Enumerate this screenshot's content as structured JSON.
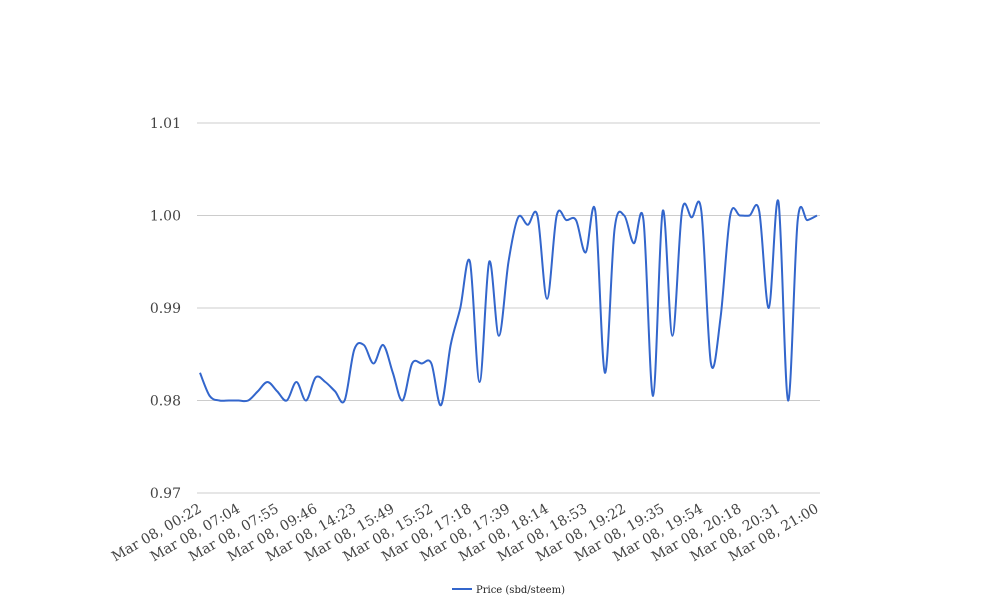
{
  "chart_data": {
    "type": "line",
    "categories": [
      "Mar 08, 00:22",
      null,
      null,
      null,
      "Mar 08, 07:04",
      null,
      null,
      null,
      "Mar 08, 07:55",
      null,
      null,
      null,
      "Mar 08, 09:46",
      null,
      null,
      null,
      "Mar 08, 14:23",
      null,
      null,
      null,
      "Mar 08, 15:49",
      null,
      null,
      null,
      "Mar 08, 15:52",
      null,
      null,
      null,
      "Mar 08, 17:18",
      null,
      null,
      null,
      "Mar 08, 17:39",
      null,
      null,
      null,
      "Mar 08, 18:14",
      null,
      null,
      null,
      "Mar 08, 18:53",
      null,
      null,
      null,
      "Mar 08, 19:22",
      null,
      null,
      null,
      "Mar 08, 19:35",
      null,
      null,
      null,
      "Mar 08, 19:54",
      null,
      null,
      null,
      "Mar 08, 20:18",
      null,
      null,
      null,
      "Mar 08, 20:31",
      null,
      null,
      null,
      "Mar 08, 21:00"
    ],
    "series": [
      {
        "name": "Price (sbd/steem)",
        "color": "#3366cc",
        "values": [
          0.983,
          0.9805,
          0.98,
          0.98,
          0.98,
          0.98,
          0.981,
          0.982,
          0.981,
          0.98,
          0.982,
          0.98,
          0.9825,
          0.982,
          0.981,
          0.98,
          0.9855,
          0.986,
          0.984,
          0.986,
          0.983,
          0.98,
          0.984,
          0.984,
          0.984,
          0.9795,
          0.986,
          0.99,
          0.995,
          0.982,
          0.995,
          0.987,
          0.995,
          0.9998,
          0.999,
          1.0,
          0.991,
          1.0,
          0.9995,
          0.9995,
          0.996,
          1.0005,
          0.983,
          0.9985,
          1.0,
          0.997,
          0.9995,
          0.9805,
          1.0005,
          0.987,
          1.0005,
          0.9998,
          1.0005,
          0.984,
          0.989,
          1.0,
          1.0,
          1.0,
          1.0005,
          0.99,
          1.0015,
          0.98,
          0.9995,
          0.9995,
          1.0
        ]
      }
    ],
    "ylim": [
      0.97,
      1.01
    ],
    "yticks": [
      0.97,
      0.98,
      0.99,
      {
        "value": 1,
        "label": "1.00"
      },
      1.01
    ],
    "grid": true,
    "legend": "bottom"
  }
}
